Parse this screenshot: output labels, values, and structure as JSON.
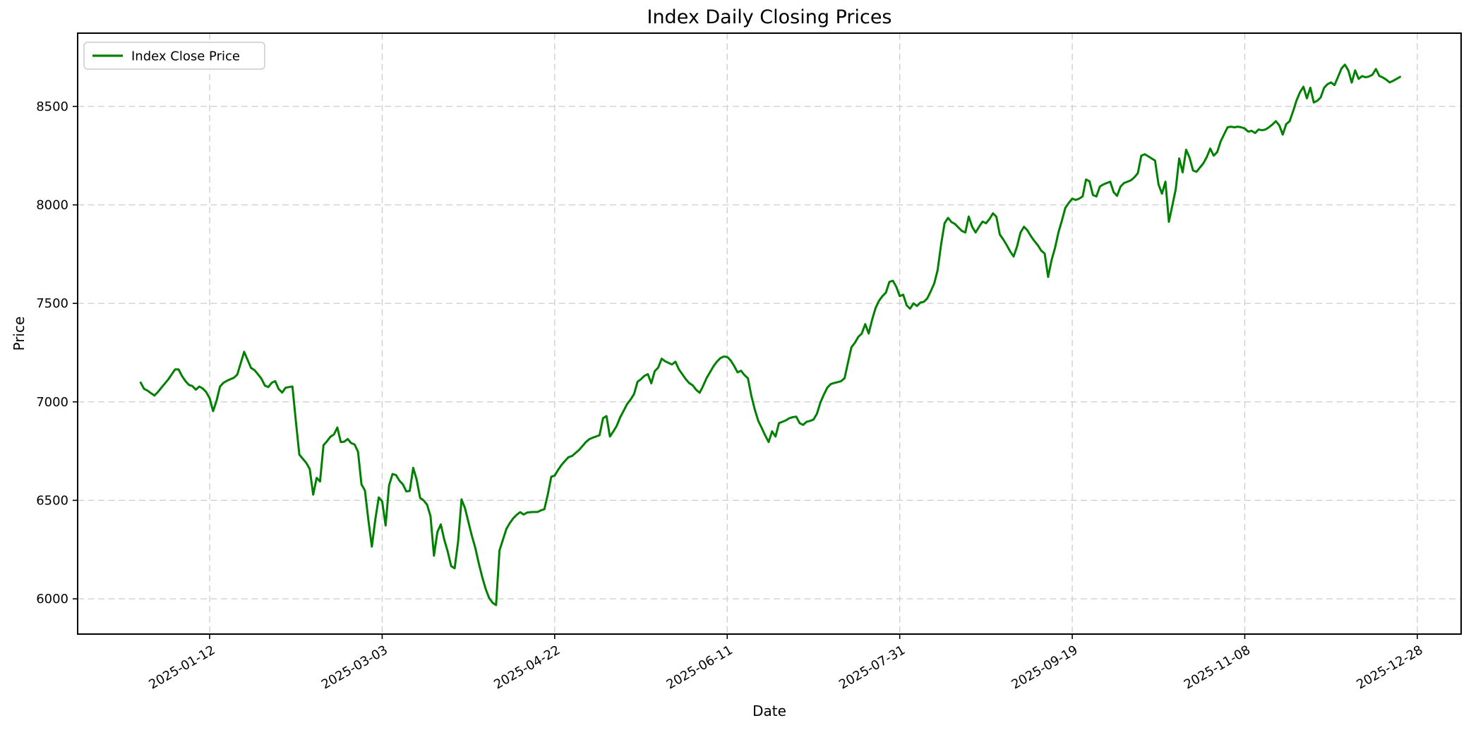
{
  "chart_data": {
    "type": "line",
    "title": "Index Daily Closing Prices",
    "xlabel": "Date",
    "ylabel": "Price",
    "grid": true,
    "grid_style": "dashed",
    "legend": {
      "position": "upper left",
      "label": "Index Close Price"
    },
    "line_color": "#008000",
    "background_color": "#ffffff",
    "ylim": [
      5821,
      8872
    ],
    "xlim_day_index": [
      -18.26,
      382.7
    ],
    "y_ticks": [
      6000,
      6500,
      7000,
      7500,
      8000,
      8500
    ],
    "x_ticks": [
      {
        "day_index": 20,
        "label": "2025-01-12"
      },
      {
        "day_index": 70,
        "label": "2025-03-03"
      },
      {
        "day_index": 120,
        "label": "2025-04-22"
      },
      {
        "day_index": 170,
        "label": "2025-06-11"
      },
      {
        "day_index": 220,
        "label": "2025-07-31"
      },
      {
        "day_index": 270,
        "label": "2025-09-19"
      },
      {
        "day_index": 320,
        "label": "2025-11-08"
      },
      {
        "day_index": 370,
        "label": "2025-12-28"
      }
    ],
    "series": [
      {
        "name": "Index Close Price",
        "color": "#008000",
        "x_unit": "day_index",
        "values": [
          7098,
          7066,
          7057,
          7044,
          7032,
          7050,
          7072,
          7093,
          7114,
          7140,
          7165,
          7165,
          7131,
          7105,
          7086,
          7080,
          7062,
          7078,
          7068,
          7050,
          7018,
          6953,
          7006,
          7078,
          7097,
          7107,
          7115,
          7122,
          7138,
          7196,
          7254,
          7213,
          7172,
          7161,
          7140,
          7118,
          7083,
          7075,
          7097,
          7105,
          7065,
          7047,
          7072,
          7075,
          7078,
          6900,
          6732,
          6711,
          6690,
          6659,
          6529,
          6614,
          6596,
          6780,
          6800,
          6823,
          6834,
          6870,
          6796,
          6798,
          6811,
          6791,
          6784,
          6747,
          6581,
          6550,
          6400,
          6265,
          6403,
          6515,
          6495,
          6372,
          6576,
          6634,
          6628,
          6600,
          6581,
          6545,
          6548,
          6665,
          6605,
          6512,
          6500,
          6478,
          6420,
          6219,
          6340,
          6378,
          6300,
          6240,
          6166,
          6155,
          6290,
          6505,
          6460,
          6390,
          6320,
          6258,
          6180,
          6110,
          6050,
          6004,
          5980,
          5968,
          6245,
          6300,
          6355,
          6385,
          6409,
          6427,
          6440,
          6428,
          6438,
          6440,
          6441,
          6441,
          6449,
          6455,
          6530,
          6620,
          6626,
          6655,
          6680,
          6700,
          6719,
          6725,
          6740,
          6755,
          6775,
          6795,
          6810,
          6818,
          6824,
          6831,
          6917,
          6928,
          6824,
          6850,
          6879,
          6922,
          6955,
          6989,
          7012,
          7040,
          7102,
          7115,
          7132,
          7141,
          7094,
          7156,
          7174,
          7219,
          7206,
          7198,
          7190,
          7204,
          7165,
          7140,
          7115,
          7095,
          7084,
          7061,
          7046,
          7080,
          7120,
          7150,
          7180,
          7204,
          7222,
          7230,
          7228,
          7210,
          7183,
          7150,
          7158,
          7136,
          7120,
          7030,
          6960,
          6903,
          6868,
          6830,
          6796,
          6850,
          6824,
          6892,
          6899,
          6906,
          6917,
          6922,
          6925,
          6892,
          6883,
          6899,
          6903,
          6910,
          6940,
          6996,
          7036,
          7072,
          7090,
          7096,
          7100,
          7105,
          7120,
          7200,
          7277,
          7300,
          7330,
          7347,
          7395,
          7347,
          7418,
          7477,
          7513,
          7537,
          7555,
          7609,
          7615,
          7584,
          7537,
          7544,
          7490,
          7473,
          7500,
          7487,
          7504,
          7508,
          7526,
          7562,
          7602,
          7670,
          7800,
          7907,
          7934,
          7913,
          7903,
          7885,
          7868,
          7860,
          7941,
          7889,
          7860,
          7889,
          7915,
          7907,
          7928,
          7957,
          7940,
          7850,
          7825,
          7796,
          7764,
          7738,
          7789,
          7860,
          7889,
          7871,
          7842,
          7817,
          7796,
          7768,
          7753,
          7634,
          7720,
          7782,
          7860,
          7920,
          7985,
          8010,
          8032,
          8025,
          8032,
          8043,
          8129,
          8120,
          8050,
          8043,
          8093,
          8104,
          8111,
          8118,
          8064,
          8046,
          8093,
          8111,
          8118,
          8125,
          8140,
          8161,
          8250,
          8257,
          8247,
          8236,
          8225,
          8104,
          8057,
          8118,
          7914,
          7997,
          8080,
          8236,
          8165,
          8280,
          8240,
          8175,
          8168,
          8190,
          8211,
          8243,
          8286,
          8250,
          8268,
          8322,
          8358,
          8394,
          8397,
          8394,
          8397,
          8394,
          8388,
          8372,
          8376,
          8365,
          8383,
          8379,
          8383,
          8394,
          8408,
          8425,
          8404,
          8357,
          8410,
          8425,
          8475,
          8530,
          8572,
          8600,
          8541,
          8595,
          8520,
          8529,
          8545,
          8595,
          8613,
          8622,
          8608,
          8649,
          8692,
          8712,
          8683,
          8621,
          8683,
          8640,
          8654,
          8648,
          8652,
          8661,
          8690,
          8655,
          8647,
          8636,
          8622,
          8630,
          8640,
          8650
        ]
      }
    ]
  }
}
